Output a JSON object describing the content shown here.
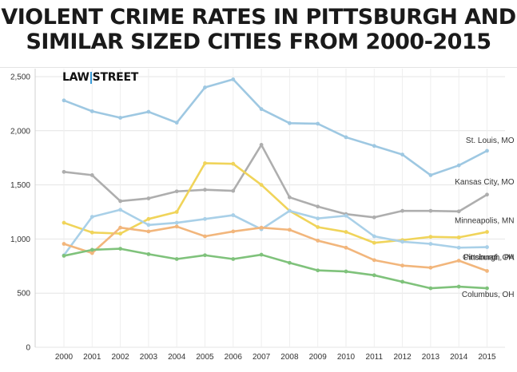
{
  "header": {
    "title_line1": "VIOLENT CRIME RATES IN PITTSBURGH AND",
    "title_line2": "SIMILAR SIZED CITIES FROM 2000-2015"
  },
  "logo": {
    "left": "LAW",
    "right": "STREET"
  },
  "chart_data": {
    "type": "line",
    "title": "VIOLENT CRIME RATES IN PITTSBURGH AND SIMILAR SIZED CITIES FROM 2000-2015",
    "xlabel": "",
    "ylabel": "",
    "x": [
      2000,
      2001,
      2002,
      2003,
      2004,
      2005,
      2006,
      2007,
      2008,
      2009,
      2010,
      2011,
      2012,
      2013,
      2014,
      2015
    ],
    "ylim": [
      0,
      2500
    ],
    "yticks": [
      0,
      500,
      1000,
      1500,
      2000,
      2500
    ],
    "ytick_labels": [
      "0",
      "500",
      "1,000",
      "1,500",
      "2,000",
      "2,500"
    ],
    "grid": true,
    "series": [
      {
        "name": "St. Louis, MO",
        "color": "#9ec8e2",
        "values": [
          2280,
          2180,
          2120,
          2175,
          2075,
          2400,
          2475,
          2200,
          2070,
          2065,
          1940,
          1860,
          1780,
          1590,
          1680,
          1815
        ]
      },
      {
        "name": "Kansas City, MO",
        "color": "#aeaeae",
        "values": [
          1620,
          1590,
          1350,
          1375,
          1440,
          1455,
          1445,
          1870,
          1385,
          1300,
          1230,
          1200,
          1260,
          1260,
          1255,
          1410
        ]
      },
      {
        "name": "Minneapolis, MN",
        "color": "#f0d45a",
        "values": [
          1150,
          1060,
          1050,
          1185,
          1250,
          1700,
          1695,
          1500,
          1260,
          1110,
          1065,
          965,
          990,
          1020,
          1015,
          1065
        ]
      },
      {
        "name": "Cincinnati, OH",
        "color": "#a9d0e8",
        "values": [
          850,
          1205,
          1270,
          1130,
          1150,
          1185,
          1220,
          1090,
          1260,
          1190,
          1215,
          1025,
          975,
          955,
          920,
          925
        ]
      },
      {
        "name": "Pittsburgh, PA",
        "color": "#f2b67c",
        "values": [
          955,
          870,
          1105,
          1070,
          1115,
          1025,
          1070,
          1105,
          1085,
          985,
          920,
          805,
          755,
          735,
          800,
          705
        ]
      },
      {
        "name": "Columbus, OH",
        "color": "#7fc27b",
        "values": [
          845,
          900,
          910,
          860,
          815,
          850,
          815,
          855,
          780,
          710,
          700,
          665,
          605,
          545,
          560,
          545
        ]
      }
    ]
  }
}
